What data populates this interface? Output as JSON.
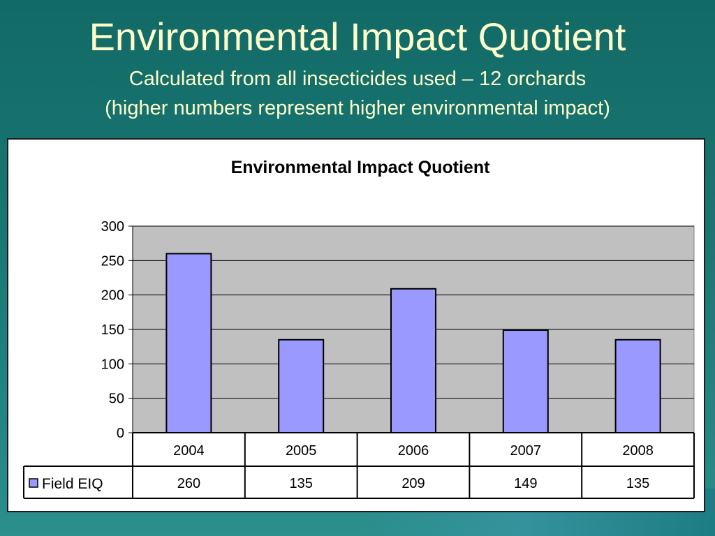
{
  "slide": {
    "title": "Environmental Impact Quotient",
    "subtitle_line1": "Calculated from all insecticides used – 12 orchards",
    "subtitle_line2": "(higher numbers represent higher environmental impact)"
  },
  "colors": {
    "background": "#1a7774",
    "title_text": "#ffffcc",
    "bar_fill": "#9999ff",
    "plot_area": "#c0c0c0"
  },
  "chart_data": {
    "type": "bar",
    "title": "Environmental Impact Quotient",
    "xlabel": "",
    "ylabel": "",
    "categories": [
      "2004",
      "2005",
      "2006",
      "2007",
      "2008"
    ],
    "series": [
      {
        "name": "Field EIQ",
        "values": [
          260,
          135,
          209,
          149,
          135
        ]
      }
    ],
    "ylim": [
      0,
      300
    ],
    "yticks": [
      0,
      50,
      100,
      150,
      200,
      250,
      300
    ],
    "grid": true,
    "legend": "data-table-left",
    "data_table": true
  }
}
